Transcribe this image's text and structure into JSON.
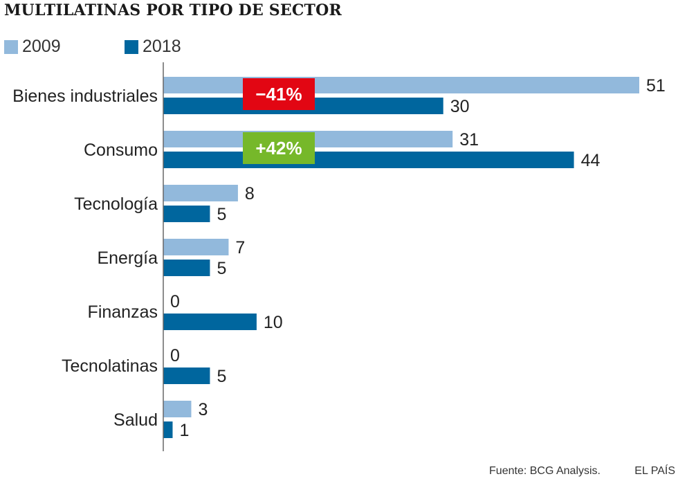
{
  "chart_data": {
    "type": "bar",
    "orientation": "horizontal",
    "title": "MULTILATINAS POR TIPO DE SECTOR",
    "categories": [
      "Bienes industriales",
      "Consumo",
      "Tecnología",
      "Energía",
      "Finanzas",
      "Tecnolatinas",
      "Salud"
    ],
    "series": [
      {
        "name": "2009",
        "color": "#92b9dc",
        "values": [
          51,
          31,
          8,
          7,
          0,
          0,
          3
        ]
      },
      {
        "name": "2018",
        "color": "#00669e",
        "values": [
          30,
          44,
          5,
          5,
          10,
          5,
          1
        ]
      }
    ],
    "xlim": [
      0,
      51
    ],
    "grid": false,
    "legend_position": "top-left",
    "annotations": [
      {
        "category": "Bienes industriales",
        "text": "−41%",
        "color": "#e20613"
      },
      {
        "category": "Consumo",
        "text": "+42%",
        "color": "#76b82a"
      }
    ]
  },
  "footer": {
    "source": "Fuente: BCG Analysis.",
    "brand": "EL PAÍS"
  }
}
